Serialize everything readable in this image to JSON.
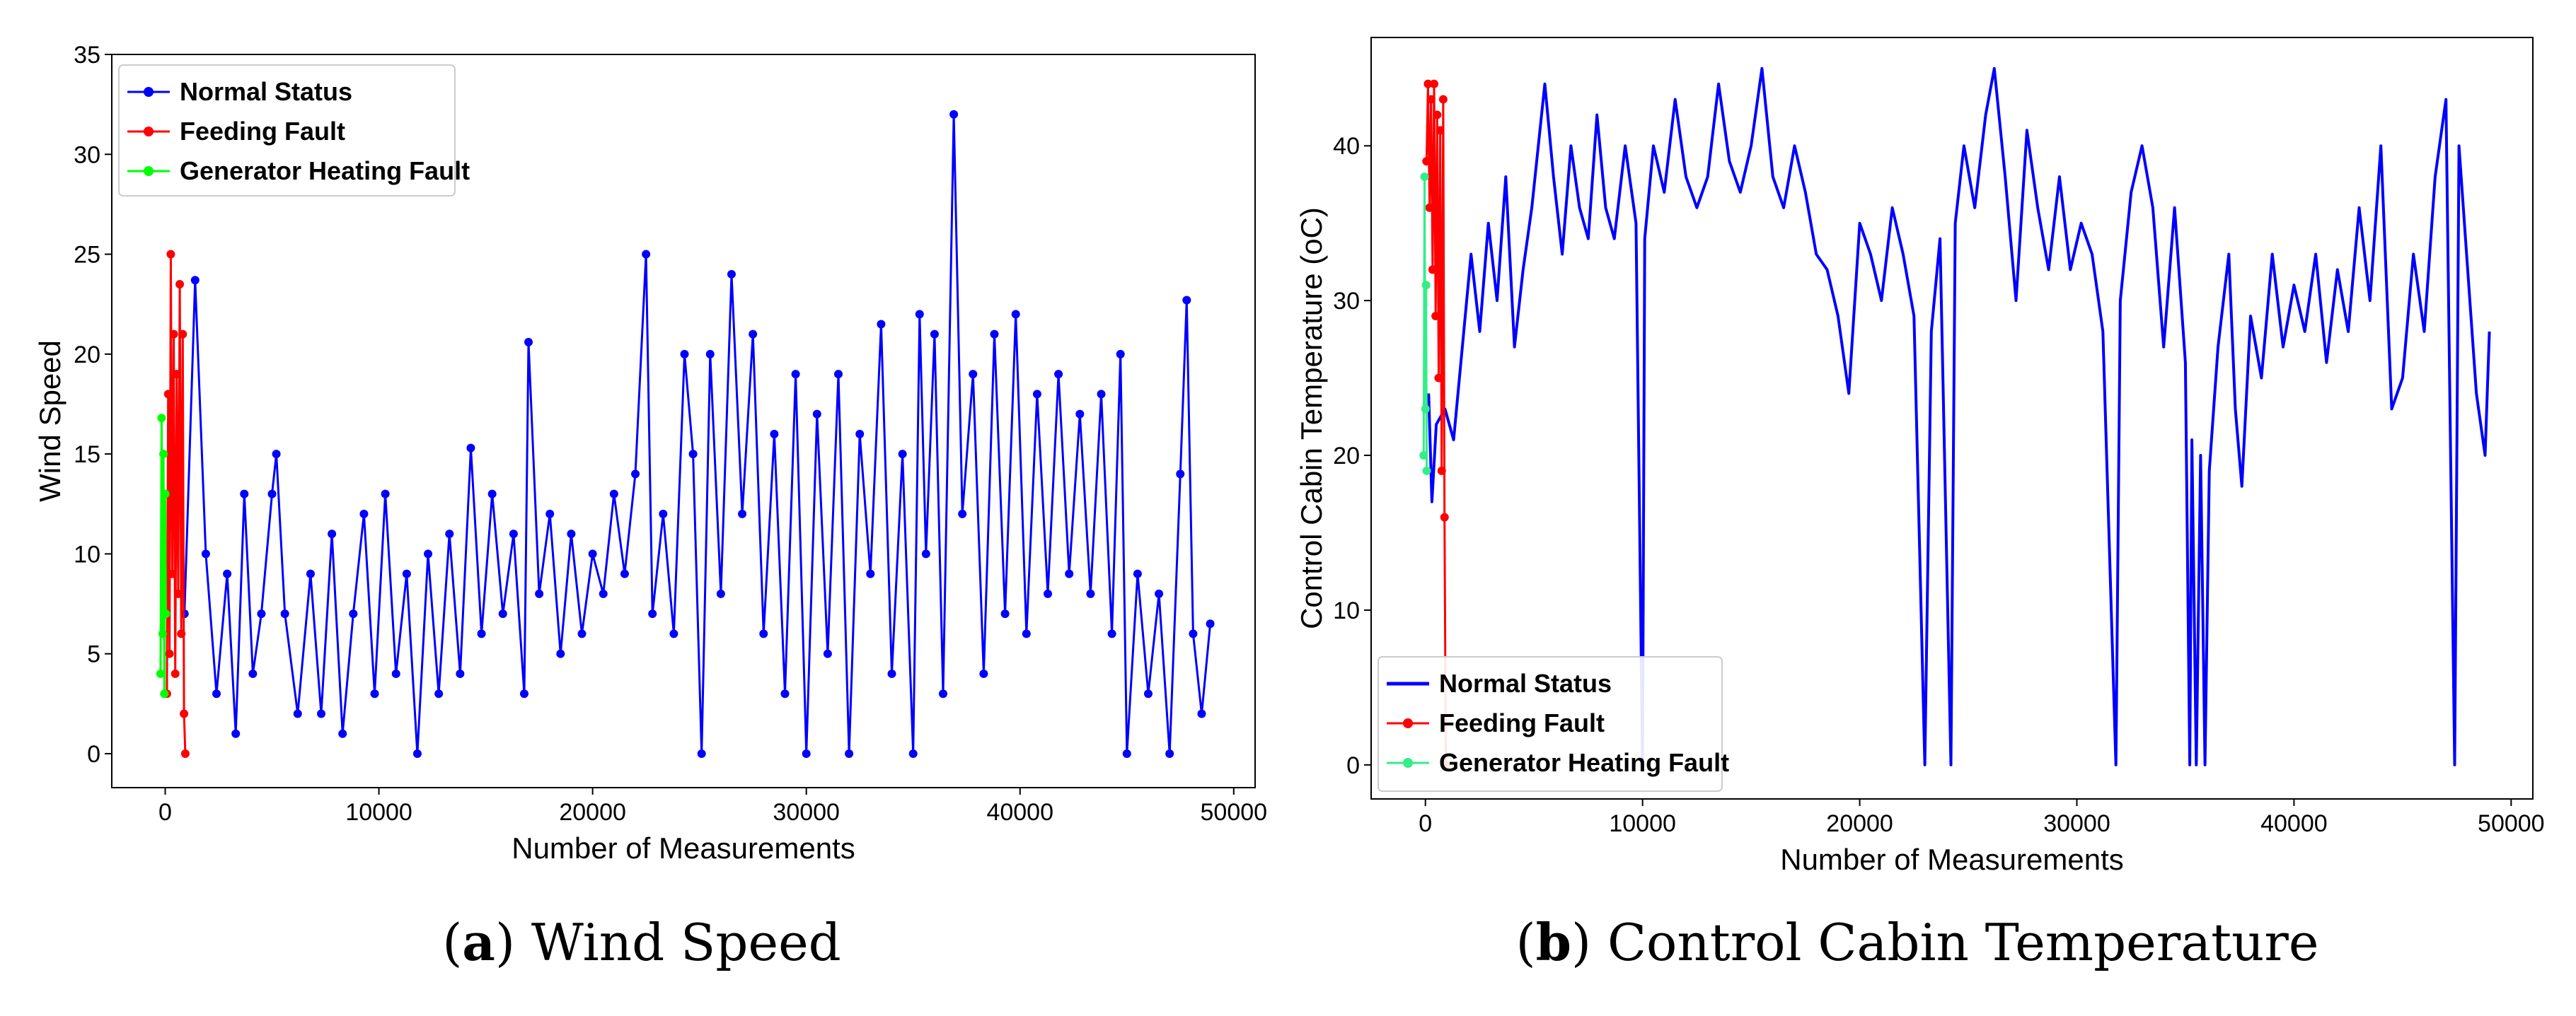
{
  "chart_data": [
    {
      "type": "line",
      "panel": "a",
      "caption_letter": "a",
      "caption_text": " Wind Speed",
      "xlabel": "Number of Measurements",
      "ylabel": "Wind Speed",
      "xlim": [
        -2500,
        51000
      ],
      "ylim": [
        -1.7,
        35
      ],
      "xticks": [
        0,
        10000,
        20000,
        30000,
        40000,
        50000
      ],
      "yticks": [
        0,
        5,
        10,
        15,
        20,
        25,
        30,
        35
      ],
      "legend_position": "top-left",
      "series": [
        {
          "name": "Normal Status",
          "color": "#0000ff",
          "marker": "dot",
          "points": [
            [
              900,
              7
            ],
            [
              1400,
              23.7
            ],
            [
              1900,
              10
            ],
            [
              2400,
              3
            ],
            [
              2900,
              9
            ],
            [
              3300,
              1
            ],
            [
              3700,
              13
            ],
            [
              4100,
              4
            ],
            [
              4500,
              7
            ],
            [
              5000,
              13
            ],
            [
              5200,
              15
            ],
            [
              5600,
              7
            ],
            [
              6200,
              2
            ],
            [
              6800,
              9
            ],
            [
              7300,
              2
            ],
            [
              7800,
              11
            ],
            [
              8300,
              1
            ],
            [
              8800,
              7
            ],
            [
              9300,
              12
            ],
            [
              9800,
              3
            ],
            [
              10300,
              13
            ],
            [
              10800,
              4
            ],
            [
              11300,
              9
            ],
            [
              11800,
              0
            ],
            [
              12300,
              10
            ],
            [
              12800,
              3
            ],
            [
              13300,
              11
            ],
            [
              13800,
              4
            ],
            [
              14300,
              15.3
            ],
            [
              14800,
              6
            ],
            [
              15300,
              13
            ],
            [
              15800,
              7
            ],
            [
              16300,
              11
            ],
            [
              16800,
              3
            ],
            [
              17000,
              20.6
            ],
            [
              17500,
              8
            ],
            [
              18000,
              12
            ],
            [
              18500,
              5
            ],
            [
              19000,
              11
            ],
            [
              19500,
              6
            ],
            [
              20000,
              10
            ],
            [
              20500,
              8
            ],
            [
              21000,
              13
            ],
            [
              21500,
              9
            ],
            [
              22000,
              14
            ],
            [
              22500,
              25
            ],
            [
              22800,
              7
            ],
            [
              23300,
              12
            ],
            [
              23800,
              6
            ],
            [
              24300,
              20
            ],
            [
              24700,
              15
            ],
            [
              25100,
              0
            ],
            [
              25500,
              20
            ],
            [
              26000,
              8
            ],
            [
              26500,
              24
            ],
            [
              27000,
              12
            ],
            [
              27500,
              21
            ],
            [
              28000,
              6
            ],
            [
              28500,
              16
            ],
            [
              29000,
              3
            ],
            [
              29500,
              19
            ],
            [
              30000,
              0
            ],
            [
              30500,
              17
            ],
            [
              31000,
              5
            ],
            [
              31500,
              19
            ],
            [
              32000,
              0
            ],
            [
              32500,
              16
            ],
            [
              33000,
              9
            ],
            [
              33500,
              21.5
            ],
            [
              34000,
              4
            ],
            [
              34500,
              15
            ],
            [
              35000,
              0
            ],
            [
              35300,
              22
            ],
            [
              35600,
              10
            ],
            [
              36000,
              21
            ],
            [
              36400,
              3
            ],
            [
              36900,
              32
            ],
            [
              37300,
              12
            ],
            [
              37800,
              19
            ],
            [
              38300,
              4
            ],
            [
              38800,
              21
            ],
            [
              39300,
              7
            ],
            [
              39800,
              22
            ],
            [
              40300,
              6
            ],
            [
              40800,
              18
            ],
            [
              41300,
              8
            ],
            [
              41800,
              19
            ],
            [
              42300,
              9
            ],
            [
              42800,
              17
            ],
            [
              43300,
              8
            ],
            [
              43800,
              18
            ],
            [
              44300,
              6
            ],
            [
              44700,
              20
            ],
            [
              45000,
              0
            ],
            [
              45500,
              9
            ],
            [
              46000,
              3
            ],
            [
              46500,
              8
            ],
            [
              47000,
              0
            ],
            [
              47500,
              14
            ],
            [
              47800,
              22.7
            ],
            [
              48100,
              6
            ],
            [
              48500,
              2
            ],
            [
              48900,
              6.5
            ]
          ]
        },
        {
          "name": "Feeding Fault",
          "color": "#ff0000",
          "marker": "dot",
          "points": [
            [
              80,
              3
            ],
            [
              140,
              18
            ],
            [
              200,
              5
            ],
            [
              260,
              25
            ],
            [
              330,
              9
            ],
            [
              400,
              21
            ],
            [
              470,
              4
            ],
            [
              540,
              19
            ],
            [
              610,
              8
            ],
            [
              680,
              23.5
            ],
            [
              750,
              6
            ],
            [
              820,
              21
            ],
            [
              880,
              2
            ],
            [
              940,
              0
            ]
          ]
        },
        {
          "name": "Generator Heating Fault",
          "color": "#00ff00",
          "marker": "dot",
          "points": [
            [
              -220,
              4
            ],
            [
              -170,
              16.8
            ],
            [
              -120,
              6
            ],
            [
              -80,
              15
            ],
            [
              -40,
              3
            ],
            [
              0,
              13
            ],
            [
              30,
              7
            ]
          ]
        }
      ]
    },
    {
      "type": "line",
      "panel": "b",
      "caption_letter": "b",
      "caption_text": " Control Cabin Temperature",
      "xlabel": "Number of Measurements",
      "ylabel": "Control Cabin Temperature (oC)",
      "xlim": [
        -2500,
        51000
      ],
      "ylim": [
        -2.2,
        47
      ],
      "xticks": [
        0,
        10000,
        20000,
        30000,
        40000,
        50000
      ],
      "yticks": [
        0,
        10,
        20,
        30,
        40
      ],
      "legend_position": "bottom-left",
      "series": [
        {
          "name": "Normal Status",
          "color": "#0000ff",
          "marker": "none",
          "points": [
            [
              150,
              24
            ],
            [
              300,
              17
            ],
            [
              500,
              22
            ],
            [
              900,
              23
            ],
            [
              1300,
              21
            ],
            [
              1700,
              27
            ],
            [
              2100,
              33
            ],
            [
              2500,
              28
            ],
            [
              2900,
              35
            ],
            [
              3300,
              30
            ],
            [
              3700,
              38
            ],
            [
              4100,
              27
            ],
            [
              4500,
              32
            ],
            [
              4900,
              36
            ],
            [
              5200,
              40
            ],
            [
              5500,
              44
            ],
            [
              5900,
              38
            ],
            [
              6300,
              33
            ],
            [
              6700,
              40
            ],
            [
              7100,
              36
            ],
            [
              7500,
              34
            ],
            [
              7900,
              42
            ],
            [
              8300,
              36
            ],
            [
              8700,
              34
            ],
            [
              9200,
              40
            ],
            [
              9700,
              35
            ],
            [
              10000,
              0
            ],
            [
              10100,
              34
            ],
            [
              10500,
              40
            ],
            [
              11000,
              37
            ],
            [
              11500,
              43
            ],
            [
              12000,
              38
            ],
            [
              12500,
              36
            ],
            [
              13000,
              38
            ],
            [
              13500,
              44
            ],
            [
              14000,
              39
            ],
            [
              14500,
              37
            ],
            [
              15000,
              40
            ],
            [
              15500,
              45
            ],
            [
              16000,
              38
            ],
            [
              16500,
              36
            ],
            [
              17000,
              40
            ],
            [
              17500,
              37
            ],
            [
              18000,
              33
            ],
            [
              18500,
              32
            ],
            [
              19000,
              29
            ],
            [
              19500,
              24
            ],
            [
              20000,
              35
            ],
            [
              20500,
              33
            ],
            [
              21000,
              30
            ],
            [
              21500,
              36
            ],
            [
              22000,
              33
            ],
            [
              22500,
              29
            ],
            [
              23000,
              0
            ],
            [
              23300,
              28
            ],
            [
              23700,
              34
            ],
            [
              24200,
              0
            ],
            [
              24400,
              35
            ],
            [
              24800,
              40
            ],
            [
              25300,
              36
            ],
            [
              25800,
              42
            ],
            [
              26200,
              45
            ],
            [
              26700,
              38
            ],
            [
              27200,
              30
            ],
            [
              27700,
              41
            ],
            [
              28200,
              36
            ],
            [
              28700,
              32
            ],
            [
              29200,
              38
            ],
            [
              29700,
              32
            ],
            [
              30200,
              35
            ],
            [
              30700,
              33
            ],
            [
              31200,
              28
            ],
            [
              31800,
              0
            ],
            [
              32000,
              30
            ],
            [
              32500,
              37
            ],
            [
              33000,
              40
            ],
            [
              33500,
              36
            ],
            [
              34000,
              27
            ],
            [
              34500,
              36
            ],
            [
              35000,
              26
            ],
            [
              35200,
              0
            ],
            [
              35300,
              21
            ],
            [
              35500,
              0
            ],
            [
              35700,
              20
            ],
            [
              35900,
              0
            ],
            [
              36100,
              19
            ],
            [
              36500,
              27
            ],
            [
              37000,
              33
            ],
            [
              37300,
              23
            ],
            [
              37600,
              18
            ],
            [
              38000,
              29
            ],
            [
              38500,
              25
            ],
            [
              39000,
              33
            ],
            [
              39500,
              27
            ],
            [
              40000,
              31
            ],
            [
              40500,
              28
            ],
            [
              41000,
              33
            ],
            [
              41500,
              26
            ],
            [
              42000,
              32
            ],
            [
              42500,
              28
            ],
            [
              43000,
              36
            ],
            [
              43500,
              30
            ],
            [
              44000,
              40
            ],
            [
              44500,
              23
            ],
            [
              45000,
              25
            ],
            [
              45500,
              33
            ],
            [
              46000,
              28
            ],
            [
              46500,
              38
            ],
            [
              47000,
              43
            ],
            [
              47400,
              0
            ],
            [
              47600,
              40
            ],
            [
              48000,
              32
            ],
            [
              48400,
              24
            ],
            [
              48800,
              20
            ],
            [
              49000,
              28
            ]
          ]
        },
        {
          "name": "Feeding Fault",
          "color": "#ff0000",
          "marker": "dot",
          "points": [
            [
              50,
              39
            ],
            [
              120,
              44
            ],
            [
              190,
              36
            ],
            [
              260,
              43
            ],
            [
              330,
              32
            ],
            [
              400,
              44
            ],
            [
              470,
              29
            ],
            [
              540,
              42
            ],
            [
              610,
              25
            ],
            [
              680,
              41
            ],
            [
              750,
              19
            ],
            [
              820,
              43
            ],
            [
              880,
              16
            ],
            [
              940,
              0
            ]
          ]
        },
        {
          "name": "Generator Heating Fault",
          "color": "#33ee88",
          "marker": "dot",
          "points": [
            [
              -80,
              20
            ],
            [
              -40,
              38
            ],
            [
              0,
              23
            ],
            [
              30,
              31
            ],
            [
              60,
              19
            ]
          ]
        }
      ]
    }
  ]
}
